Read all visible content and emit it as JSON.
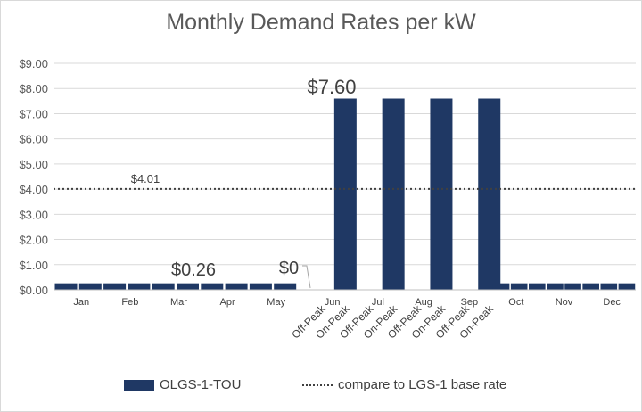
{
  "chart_data": {
    "type": "bar",
    "title": "Monthly Demand Rates per kW",
    "ylim": [
      0,
      9
    ],
    "y_ticks": [
      "$0.00",
      "$1.00",
      "$2.00",
      "$3.00",
      "$4.00",
      "$5.00",
      "$6.00",
      "$7.00",
      "$8.00",
      "$9.00"
    ],
    "months": [
      "Jan",
      "Feb",
      "Mar",
      "Apr",
      "May",
      "Jun",
      "Jul",
      "Aug",
      "Sep",
      "Oct",
      "Nov",
      "Dec"
    ],
    "period_labels": [
      "Off-Peak",
      "On-Peak",
      "Off-Peak",
      "On-Peak",
      "Off-Peak",
      "On-Peak",
      "Off-Peak",
      "On-Peak"
    ],
    "series": [
      {
        "name": "OLGS-1-TOU",
        "color": "#1f3864",
        "values": [
          0.26,
          0.26,
          0.26,
          0.26,
          0.26,
          0.26,
          0.26,
          0.26,
          0.26,
          0.26,
          0,
          7.6,
          0,
          7.6,
          0,
          7.6,
          0,
          7.6,
          0.26,
          0.26,
          0.26,
          0.26,
          0.26,
          0.26,
          0.26,
          0.26
        ]
      }
    ],
    "reference_line": {
      "name": "compare to LGS-1 base rate",
      "value": 4.01,
      "label": "$4.01"
    },
    "annotations": [
      "$7.60",
      "$0.26",
      "$0"
    ],
    "legend_position": "bottom",
    "grid": true
  }
}
